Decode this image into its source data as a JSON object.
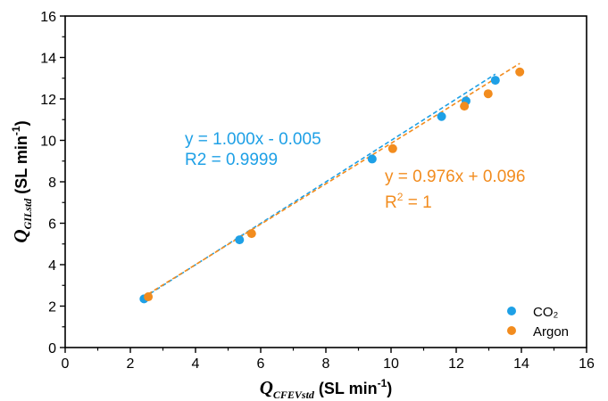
{
  "chart_data": {
    "type": "scatter",
    "title": "",
    "xlabel": {
      "q": "Q",
      "sub": "CFEVstd",
      "unit": " (SL min",
      "sup": "-1",
      "close": ")"
    },
    "ylabel": {
      "q": "Q",
      "sub": "GILstd",
      "unit": " (SL min",
      "sup": "-1",
      "close": ")"
    },
    "xlim": [
      0,
      16
    ],
    "ylim": [
      0,
      16
    ],
    "xticks": [
      "0",
      "2",
      "4",
      "6",
      "8",
      "10",
      "12",
      "14",
      "16"
    ],
    "yticks": [
      "0",
      "2",
      "4",
      "6",
      "8",
      "10",
      "12",
      "14",
      "16"
    ],
    "legend_position": "bottom-right",
    "series": [
      {
        "name": "CO₂",
        "color": "#1ea0e6",
        "x": [
          2.42,
          5.35,
          9.42,
          11.55,
          12.3,
          13.2
        ],
        "y": [
          2.35,
          5.2,
          9.1,
          11.15,
          11.9,
          12.9
        ],
        "fit": {
          "slope": 1.0,
          "intercept": -0.005,
          "x_range": [
            2.42,
            13.2
          ]
        }
      },
      {
        "name": "Argon",
        "color": "#f28c1e",
        "x": [
          2.55,
          5.72,
          10.05,
          12.25,
          12.98,
          13.95
        ],
        "y": [
          2.45,
          5.5,
          9.6,
          11.65,
          12.25,
          13.3
        ],
        "fit": {
          "slope": 0.976,
          "intercept": 0.096,
          "x_range": [
            2.55,
            13.95
          ]
        }
      }
    ],
    "annotations": {
      "co2_equation": "y = 1.000x - 0.005",
      "co2_r2": "R2 = 0.9999",
      "argon_equation": "y = 0.976x + 0.096",
      "argon_r2_base": "R",
      "argon_r2_sup": "2",
      "argon_r2_rest": " = 1"
    }
  }
}
